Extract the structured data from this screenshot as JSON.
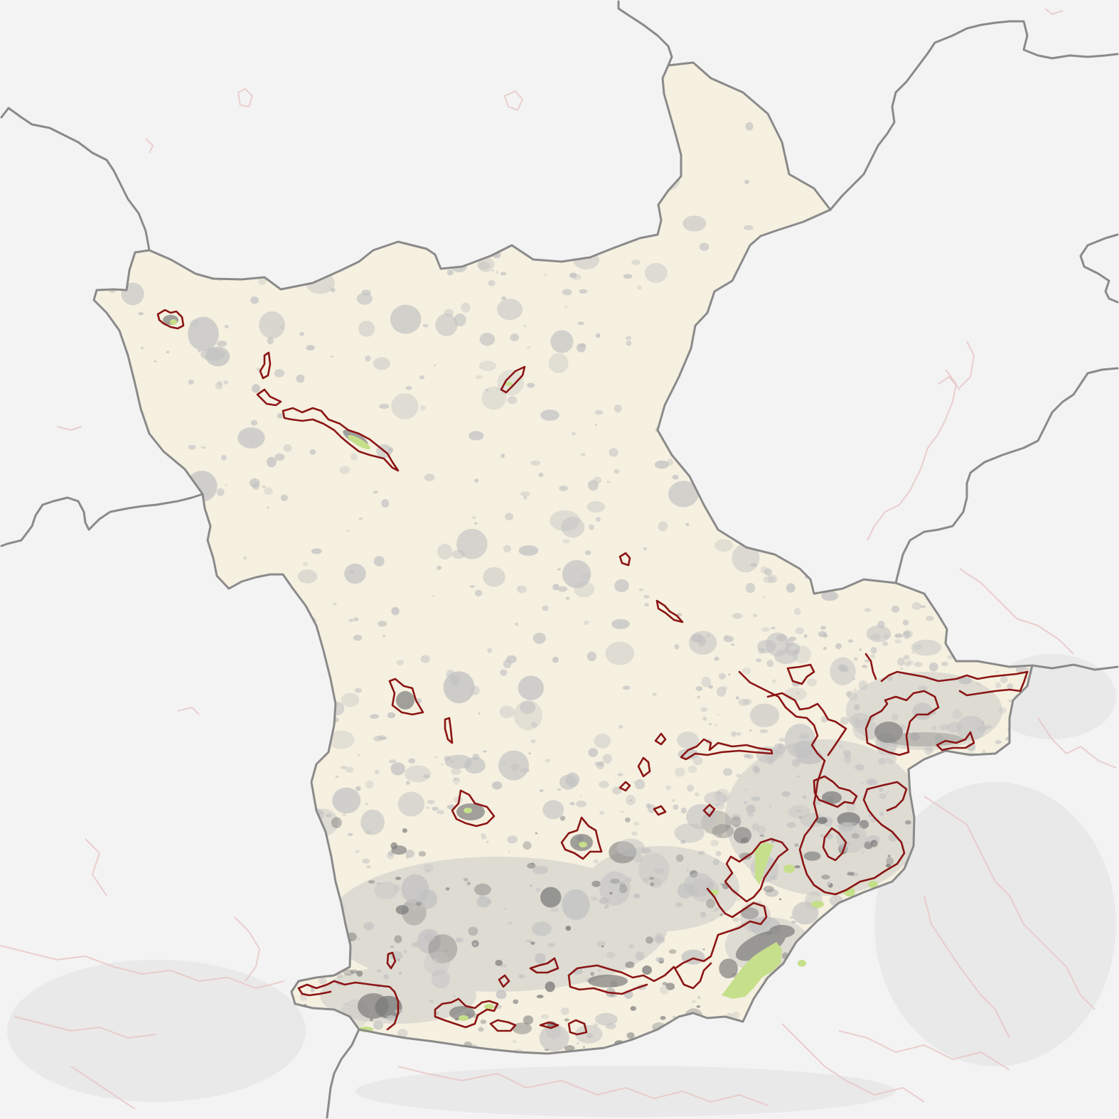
{
  "map": {
    "colors": {
      "background": "#f3f3f3",
      "outside_texture": "#d6d6d6",
      "neighbor_urban_outline": "#e7c2c2",
      "region_fill": "#f5f0e0",
      "land_cover_light": "#c2c2c2",
      "land_cover_dark": "#7c7c7c",
      "vegetation": "#c6df8a",
      "boundary": "#8a8a8a",
      "urban_outline": "#8b1414"
    }
  }
}
